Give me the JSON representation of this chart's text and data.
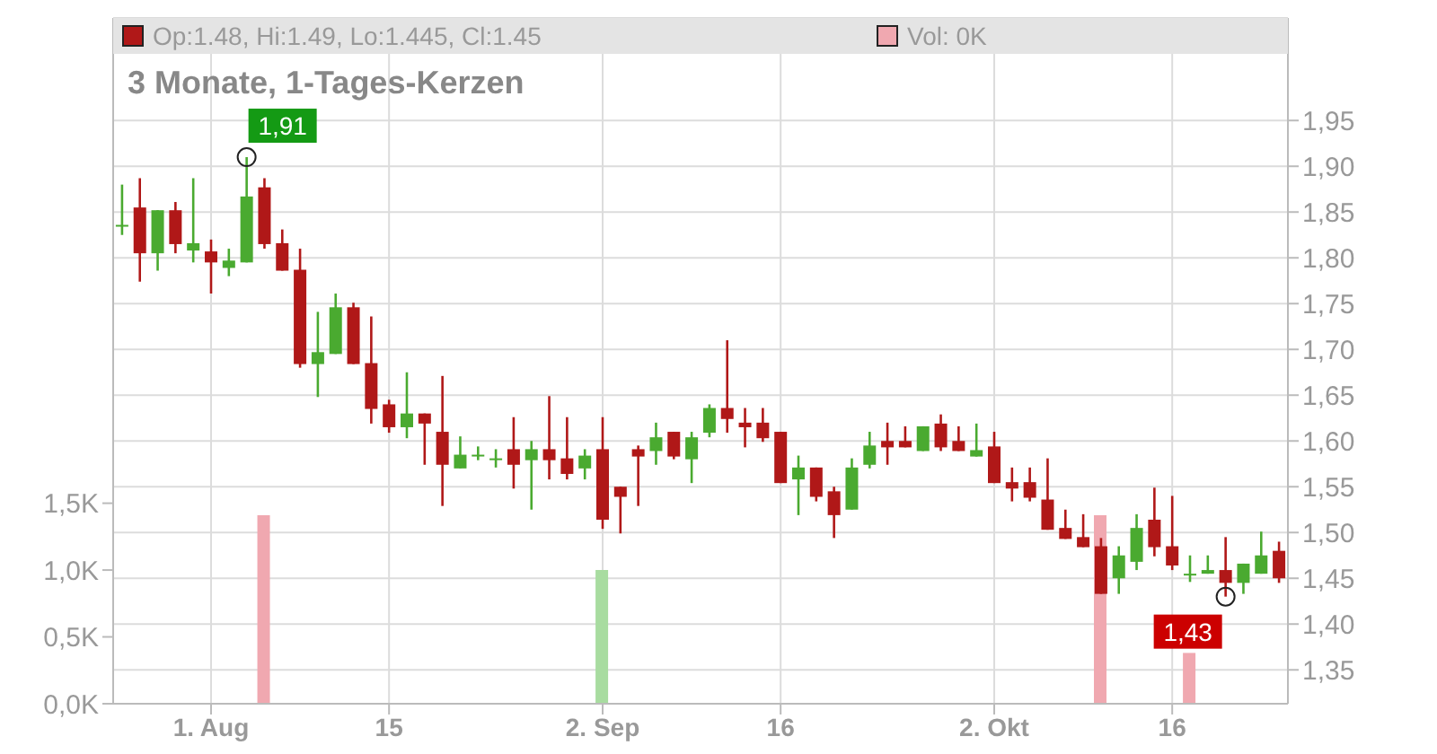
{
  "chart_data": {
    "type": "candlestick",
    "title": "3 Monate, 1-Tages-Kerzen",
    "categories": [
      null,
      null,
      null,
      null,
      null,
      "1. Aug",
      null,
      null,
      null,
      null,
      null,
      null,
      null,
      null,
      null,
      "15",
      null,
      null,
      null,
      null,
      null,
      null,
      null,
      null,
      null,
      null,
      null,
      "2. Sep",
      null,
      null,
      null,
      null,
      null,
      null,
      null,
      null,
      null,
      "16",
      null,
      null,
      null,
      null,
      null,
      null,
      null,
      null,
      null,
      null,
      null,
      "2. Okt",
      null,
      null,
      null,
      null,
      null,
      null,
      null,
      null,
      null,
      "16",
      null,
      null,
      null,
      null,
      null,
      null
    ],
    "series": [
      {
        "axis": "y2",
        "name": "Op:1.48, Hi:1.49, Lo:1.445, Cl:1.45",
        "color": "#b01818",
        "ohlc": [
          [
            1.836,
            1.88,
            1.825,
            1.836
          ],
          [
            1.855,
            1.887,
            1.774,
            1.805
          ],
          [
            1.805,
            1.852,
            1.786,
            1.852
          ],
          [
            1.852,
            1.861,
            1.805,
            1.815
          ],
          [
            1.808,
            1.887,
            1.795,
            1.816
          ],
          [
            1.807,
            1.82,
            1.761,
            1.795
          ],
          [
            1.789,
            1.81,
            1.78,
            1.797
          ],
          [
            1.795,
            1.91,
            1.795,
            1.867
          ],
          [
            1.877,
            1.887,
            1.81,
            1.815
          ],
          [
            1.816,
            1.831,
            1.786,
            1.786
          ],
          [
            1.787,
            1.81,
            1.68,
            1.684
          ],
          [
            1.684,
            1.741,
            1.648,
            1.697
          ],
          [
            1.695,
            1.761,
            1.695,
            1.746
          ],
          [
            1.746,
            1.751,
            1.684,
            1.684
          ],
          [
            1.685,
            1.736,
            1.619,
            1.635
          ],
          [
            1.64,
            1.645,
            1.609,
            1.615
          ],
          [
            1.615,
            1.675,
            1.603,
            1.63
          ],
          [
            1.63,
            1.63,
            1.574,
            1.619
          ],
          [
            1.61,
            1.671,
            1.529,
            1.574
          ],
          [
            1.57,
            1.605,
            1.57,
            1.585
          ],
          [
            1.585,
            1.594,
            1.579,
            1.585
          ],
          [
            1.581,
            1.591,
            1.571,
            1.581
          ],
          [
            1.591,
            1.626,
            1.548,
            1.574
          ],
          [
            1.579,
            1.6,
            1.525,
            1.591
          ],
          [
            1.591,
            1.649,
            1.558,
            1.579
          ],
          [
            1.581,
            1.626,
            1.558,
            1.564
          ],
          [
            1.57,
            1.591,
            1.558,
            1.584
          ],
          [
            1.591,
            1.626,
            1.504,
            1.514
          ],
          [
            1.55,
            1.55,
            1.499,
            1.539
          ],
          [
            1.591,
            1.595,
            1.529,
            1.583
          ],
          [
            1.589,
            1.62,
            1.574,
            1.604
          ],
          [
            1.61,
            1.61,
            1.58,
            1.583
          ],
          [
            1.58,
            1.61,
            1.554,
            1.604
          ],
          [
            1.609,
            1.64,
            1.604,
            1.636
          ],
          [
            1.636,
            1.71,
            1.609,
            1.624
          ],
          [
            1.62,
            1.636,
            1.593,
            1.615
          ],
          [
            1.62,
            1.636,
            1.599,
            1.603
          ],
          [
            1.61,
            1.61,
            1.554,
            1.554
          ],
          [
            1.558,
            1.584,
            1.519,
            1.571
          ],
          [
            1.571,
            1.571,
            1.534,
            1.539
          ],
          [
            1.545,
            1.55,
            1.494,
            1.519
          ],
          [
            1.525,
            1.581,
            1.525,
            1.571
          ],
          [
            1.574,
            1.61,
            1.57,
            1.595
          ],
          [
            1.6,
            1.62,
            1.574,
            1.593
          ],
          [
            1.6,
            1.616,
            1.593,
            1.593
          ],
          [
            1.589,
            1.616,
            1.589,
            1.616
          ],
          [
            1.619,
            1.629,
            1.589,
            1.593
          ],
          [
            1.6,
            1.616,
            1.589,
            1.589
          ],
          [
            1.583,
            1.619,
            1.583,
            1.59
          ],
          [
            1.594,
            1.61,
            1.554,
            1.554
          ],
          [
            1.555,
            1.571,
            1.534,
            1.548
          ],
          [
            1.555,
            1.571,
            1.534,
            1.538
          ],
          [
            1.536,
            1.581,
            1.503,
            1.503
          ],
          [
            1.505,
            1.525,
            1.493,
            1.493
          ],
          [
            1.495,
            1.52,
            1.484,
            1.484
          ],
          [
            1.485,
            1.494,
            1.433,
            1.433
          ],
          [
            1.45,
            1.485,
            1.433,
            1.475
          ],
          [
            1.468,
            1.52,
            1.459,
            1.505
          ],
          [
            1.514,
            1.549,
            1.474,
            1.484
          ],
          [
            1.485,
            1.54,
            1.459,
            1.464
          ],
          [
            1.455,
            1.475,
            1.446,
            1.455
          ],
          [
            1.455,
            1.475,
            1.455,
            1.459
          ],
          [
            1.459,
            1.495,
            1.43,
            1.445
          ],
          [
            1.445,
            1.466,
            1.433,
            1.466
          ],
          [
            1.455,
            1.501,
            1.455,
            1.475
          ],
          [
            1.48,
            1.49,
            1.445,
            1.45
          ]
        ],
        "colors": [
          "#4aaa30",
          "#b01818",
          "#4aaa30",
          "#b01818",
          "#4aaa30",
          "#b01818",
          "#4aaa30",
          "#4aaa30",
          "#b01818",
          "#b01818",
          "#b01818",
          "#4aaa30",
          "#4aaa30",
          "#b01818",
          "#b01818",
          "#b01818",
          "#4aaa30",
          "#b01818",
          "#b01818",
          "#4aaa30",
          "#4aaa30",
          "#4aaa30",
          "#b01818",
          "#4aaa30",
          "#b01818",
          "#b01818",
          "#4aaa30",
          "#b01818",
          "#b01818",
          "#b01818",
          "#4aaa30",
          "#b01818",
          "#4aaa30",
          "#4aaa30",
          "#b01818",
          "#b01818",
          "#b01818",
          "#b01818",
          "#4aaa30",
          "#b01818",
          "#b01818",
          "#4aaa30",
          "#4aaa30",
          "#b01818",
          "#b01818",
          "#4aaa30",
          "#b01818",
          "#b01818",
          "#4aaa30",
          "#b01818",
          "#b01818",
          "#b01818",
          "#b01818",
          "#b01818",
          "#b01818",
          "#b01818",
          "#4aaa30",
          "#4aaa30",
          "#b01818",
          "#b01818",
          "#4aaa30",
          "#4aaa30",
          "#b01818",
          "#4aaa30",
          "#4aaa30",
          "#b01818"
        ]
      },
      {
        "type": "bar",
        "axis": "y",
        "name": "Vol: 0K",
        "color": "#f0a8b0",
        "values": [
          null,
          null,
          null,
          null,
          null,
          null,
          null,
          null,
          1.41,
          null,
          null,
          null,
          null,
          null,
          null,
          null,
          null,
          null,
          null,
          null,
          null,
          null,
          null,
          null,
          null,
          null,
          null,
          1.0,
          null,
          null,
          null,
          null,
          null,
          null,
          null,
          null,
          null,
          null,
          null,
          null,
          null,
          null,
          null,
          null,
          null,
          null,
          null,
          null,
          null,
          null,
          null,
          null,
          null,
          null,
          null,
          1.41,
          null,
          null,
          null,
          null,
          0.38,
          null,
          null,
          null,
          null,
          null
        ],
        "colors": [
          null,
          null,
          null,
          null,
          null,
          null,
          null,
          null,
          "#f0a8b0",
          null,
          null,
          null,
          null,
          null,
          null,
          null,
          null,
          null,
          null,
          null,
          null,
          null,
          null,
          null,
          null,
          null,
          null,
          "#a8dca0",
          null,
          null,
          null,
          null,
          null,
          null,
          null,
          null,
          null,
          null,
          null,
          null,
          null,
          null,
          null,
          null,
          null,
          null,
          null,
          null,
          null,
          null,
          null,
          null,
          null,
          null,
          null,
          "#f0a8b0",
          null,
          null,
          null,
          null,
          "#f0a8b0",
          null,
          null,
          null,
          null,
          null
        ]
      }
    ],
    "ylim": [
      0,
      5.13
    ],
    "yticks": [
      {
        "value": 0,
        "label": "0,0K"
      },
      {
        "value": 0.5,
        "label": "0,5K"
      },
      {
        "value": 1,
        "label": "1,0K"
      },
      {
        "value": 1.5,
        "label": "1,5K"
      }
    ],
    "y2lim": [
      1.313,
      2.062
    ],
    "y2ticks": [
      {
        "value": 1.35,
        "label": "1,35"
      },
      {
        "value": 1.4,
        "label": "1,40"
      },
      {
        "value": 1.45,
        "label": "1,45"
      },
      {
        "value": 1.5,
        "label": "1,50"
      },
      {
        "value": 1.55,
        "label": "1,55"
      },
      {
        "value": 1.6,
        "label": "1,60"
      },
      {
        "value": 1.65,
        "label": "1,65"
      },
      {
        "value": 1.7,
        "label": "1,70"
      },
      {
        "value": 1.75,
        "label": "1,75"
      },
      {
        "value": 1.8,
        "label": "1,80"
      },
      {
        "value": 1.85,
        "label": "1,85"
      },
      {
        "value": 1.9,
        "label": "1,90"
      },
      {
        "value": 1.95,
        "label": "1,95"
      }
    ],
    "annotations": [
      "1,91",
      "1,43"
    ],
    "grid": true,
    "legend": "top"
  }
}
